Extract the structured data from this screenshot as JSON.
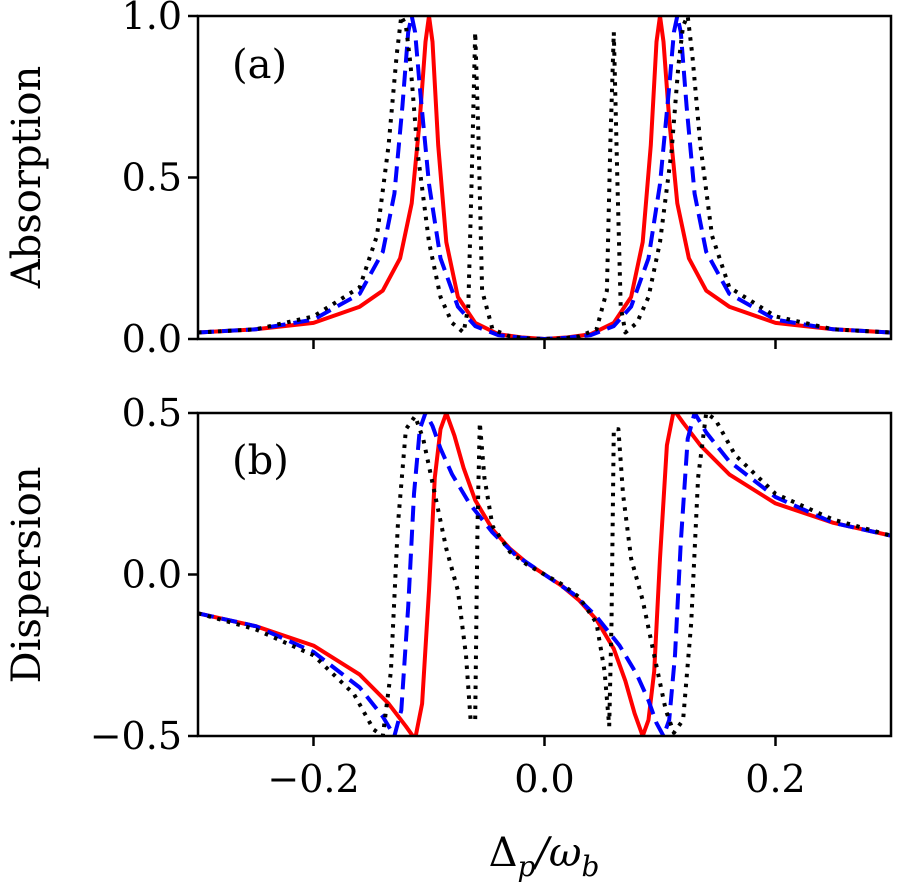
{
  "chart_data": {
    "type": "line",
    "xlabel": "Δp/ωb",
    "xlabel_main": "Δ",
    "xlabel_sub1": "p",
    "xlabel_slash": "/ω",
    "xlabel_sub2": "b",
    "xlim": [
      -0.3,
      0.3
    ],
    "xticks": [
      -0.2,
      0.0,
      0.2
    ],
    "xtick_labels": [
      "−0.2",
      "0.0",
      "0.2"
    ],
    "colors": {
      "solid": "#ff0000",
      "dashed": "#0000ff",
      "dotted": "#000000"
    },
    "panels": [
      {
        "tag": "(a)",
        "ylabel": "Absorption",
        "ylim": [
          0.0,
          1.0
        ],
        "yticks": [
          0.0,
          0.5,
          1.0
        ],
        "ytick_labels": [
          "0.0",
          "0.5",
          "1.0"
        ],
        "series": [
          {
            "name": "solid",
            "style": "solid",
            "x": [
              -0.3,
              -0.25,
              -0.2,
              -0.16,
              -0.14,
              -0.125,
              -0.115,
              -0.108,
              -0.103,
              -0.1,
              -0.097,
              -0.092,
              -0.085,
              -0.075,
              -0.06,
              -0.04,
              -0.02,
              0.0,
              0.02,
              0.04,
              0.06,
              0.075,
              0.085,
              0.092,
              0.097,
              0.1,
              0.103,
              0.108,
              0.115,
              0.125,
              0.14,
              0.16,
              0.2,
              0.25,
              0.3
            ],
            "y": [
              0.02,
              0.03,
              0.05,
              0.1,
              0.15,
              0.25,
              0.42,
              0.68,
              0.92,
              1.0,
              0.92,
              0.6,
              0.3,
              0.13,
              0.05,
              0.015,
              0.005,
              0.0,
              0.005,
              0.015,
              0.05,
              0.13,
              0.3,
              0.6,
              0.92,
              1.0,
              0.92,
              0.68,
              0.42,
              0.25,
              0.15,
              0.1,
              0.05,
              0.03,
              0.02
            ]
          },
          {
            "name": "dashed",
            "style": "dashed",
            "x": [
              -0.3,
              -0.25,
              -0.2,
              -0.16,
              -0.14,
              -0.13,
              -0.123,
              -0.118,
              -0.115,
              -0.112,
              -0.108,
              -0.1,
              -0.09,
              -0.075,
              -0.06,
              -0.04,
              -0.02,
              0.0,
              0.02,
              0.04,
              0.06,
              0.075,
              0.09,
              0.1,
              0.108,
              0.112,
              0.115,
              0.118,
              0.123,
              0.13,
              0.14,
              0.16,
              0.2,
              0.25,
              0.3
            ],
            "y": [
              0.02,
              0.03,
              0.06,
              0.14,
              0.27,
              0.45,
              0.72,
              0.95,
              1.0,
              0.95,
              0.78,
              0.48,
              0.25,
              0.1,
              0.04,
              0.012,
              0.004,
              0.0,
              0.004,
              0.012,
              0.04,
              0.1,
              0.25,
              0.48,
              0.78,
              0.95,
              1.0,
              0.95,
              0.72,
              0.45,
              0.27,
              0.14,
              0.06,
              0.03,
              0.02
            ]
          },
          {
            "name": "dotted",
            "style": "dotted",
            "x": [
              -0.3,
              -0.25,
              -0.2,
              -0.16,
              -0.145,
              -0.135,
              -0.128,
              -0.124,
              -0.12,
              -0.116,
              -0.11,
              -0.1,
              -0.09,
              -0.08,
              -0.07,
              -0.066,
              -0.063,
              -0.06,
              -0.057,
              -0.054,
              -0.045,
              -0.03,
              -0.015,
              0.0,
              0.015,
              0.03,
              0.045,
              0.054,
              0.057,
              0.06,
              0.063,
              0.066,
              0.07,
              0.08,
              0.09,
              0.1,
              0.11,
              0.116,
              0.12,
              0.124,
              0.128,
              0.135,
              0.145,
              0.16,
              0.2,
              0.25,
              0.3
            ],
            "y": [
              0.02,
              0.03,
              0.07,
              0.16,
              0.32,
              0.6,
              0.88,
              1.0,
              0.97,
              0.85,
              0.58,
              0.3,
              0.13,
              0.05,
              0.02,
              0.1,
              0.5,
              0.95,
              0.6,
              0.15,
              0.03,
              0.008,
              0.002,
              0.0,
              0.002,
              0.008,
              0.03,
              0.15,
              0.6,
              0.95,
              0.5,
              0.1,
              0.02,
              0.05,
              0.13,
              0.3,
              0.58,
              0.85,
              0.97,
              1.0,
              0.88,
              0.6,
              0.32,
              0.16,
              0.07,
              0.03,
              0.02
            ]
          }
        ]
      },
      {
        "tag": "(b)",
        "ylabel": "Dispersion",
        "ylim": [
          -0.5,
          0.5
        ],
        "yticks": [
          -0.5,
          0.0,
          0.5
        ],
        "ytick_labels": [
          "−0.5",
          "0.0",
          "0.5"
        ],
        "series": [
          {
            "name": "solid",
            "style": "solid",
            "x": [
              -0.3,
              -0.25,
              -0.2,
              -0.16,
              -0.135,
              -0.12,
              -0.112,
              -0.106,
              -0.1,
              -0.095,
              -0.09,
              -0.085,
              -0.078,
              -0.07,
              -0.06,
              -0.045,
              -0.03,
              -0.015,
              0.0,
              0.015,
              0.03,
              0.045,
              0.06,
              0.07,
              0.078,
              0.085,
              0.09,
              0.095,
              0.1,
              0.106,
              0.112,
              0.12,
              0.135,
              0.16,
              0.2,
              0.25,
              0.3
            ],
            "y": [
              -0.12,
              -0.16,
              -0.22,
              -0.31,
              -0.4,
              -0.47,
              -0.51,
              -0.4,
              -0.05,
              0.3,
              0.45,
              0.5,
              0.43,
              0.33,
              0.23,
              0.14,
              0.08,
              0.035,
              0.0,
              -0.035,
              -0.08,
              -0.14,
              -0.23,
              -0.33,
              -0.43,
              -0.5,
              -0.45,
              -0.3,
              0.05,
              0.4,
              0.51,
              0.47,
              0.4,
              0.31,
              0.22,
              0.16,
              0.12
            ]
          },
          {
            "name": "dashed",
            "style": "dashed",
            "x": [
              -0.3,
              -0.25,
              -0.2,
              -0.16,
              -0.14,
              -0.13,
              -0.124,
              -0.118,
              -0.113,
              -0.108,
              -0.103,
              -0.097,
              -0.09,
              -0.08,
              -0.065,
              -0.045,
              -0.025,
              0.0,
              0.025,
              0.045,
              0.065,
              0.08,
              0.09,
              0.097,
              0.103,
              0.108,
              0.113,
              0.118,
              0.124,
              0.13,
              0.14,
              0.16,
              0.2,
              0.25,
              0.3
            ],
            "y": [
              -0.12,
              -0.16,
              -0.24,
              -0.35,
              -0.44,
              -0.5,
              -0.42,
              -0.1,
              0.25,
              0.45,
              0.5,
              0.46,
              0.39,
              0.31,
              0.22,
              0.13,
              0.06,
              0.0,
              -0.06,
              -0.13,
              -0.22,
              -0.31,
              -0.39,
              -0.46,
              -0.5,
              -0.45,
              -0.25,
              0.1,
              0.42,
              0.5,
              0.44,
              0.35,
              0.24,
              0.16,
              0.12
            ]
          },
          {
            "name": "dotted",
            "style": "dotted",
            "x": [
              -0.3,
              -0.25,
              -0.2,
              -0.165,
              -0.148,
              -0.14,
              -0.133,
              -0.127,
              -0.12,
              -0.112,
              -0.105,
              -0.095,
              -0.085,
              -0.075,
              -0.068,
              -0.064,
              -0.06,
              -0.058,
              -0.056,
              -0.052,
              -0.045,
              -0.03,
              -0.015,
              0.0,
              0.015,
              0.03,
              0.045,
              0.052,
              0.056,
              0.058,
              0.06,
              0.064,
              0.068,
              0.075,
              0.085,
              0.095,
              0.105,
              0.112,
              0.12,
              0.127,
              0.133,
              0.14,
              0.148,
              0.165,
              0.2,
              0.25,
              0.3
            ],
            "y": [
              -0.12,
              -0.17,
              -0.25,
              -0.37,
              -0.48,
              -0.5,
              -0.3,
              0.15,
              0.45,
              0.49,
              0.42,
              0.25,
              0.08,
              -0.05,
              -0.25,
              -0.45,
              -0.45,
              0.15,
              0.47,
              0.3,
              0.15,
              0.07,
              0.03,
              0.0,
              -0.03,
              -0.07,
              -0.15,
              -0.3,
              -0.47,
              -0.15,
              0.45,
              0.45,
              0.25,
              0.05,
              -0.08,
              -0.25,
              -0.42,
              -0.49,
              -0.45,
              -0.15,
              0.3,
              0.5,
              0.48,
              0.37,
              0.25,
              0.17,
              0.12
            ]
          }
        ]
      }
    ]
  }
}
